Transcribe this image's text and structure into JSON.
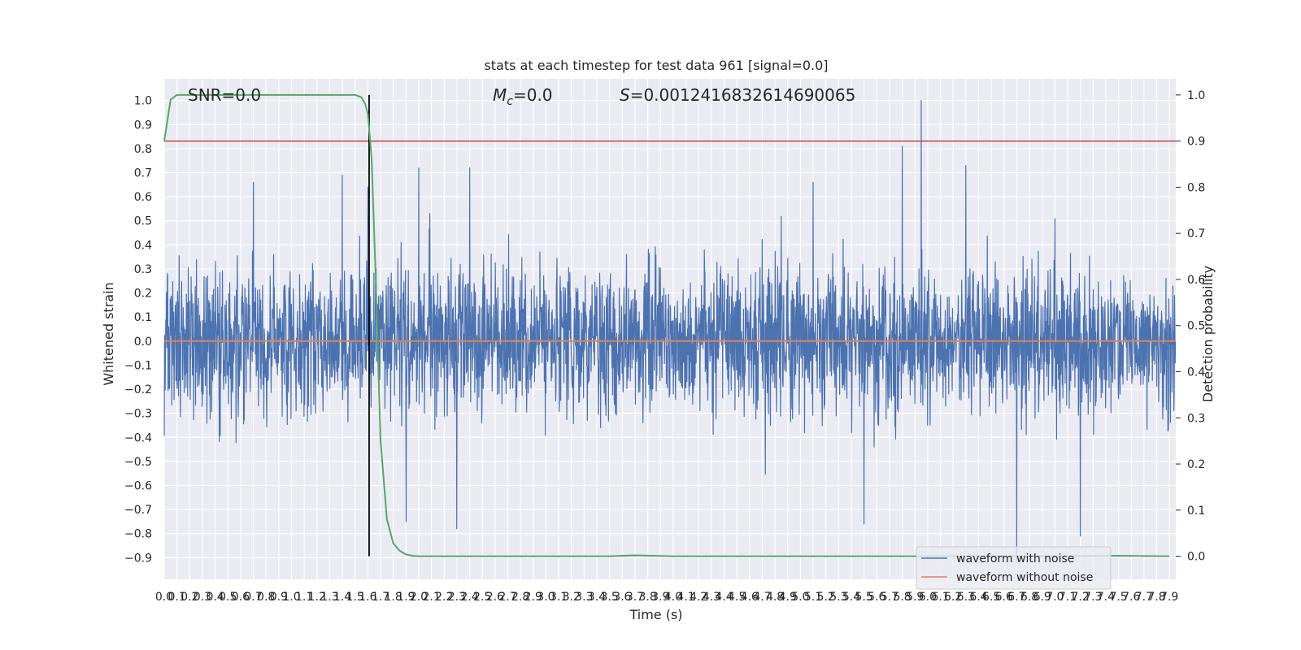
{
  "chart_data": {
    "type": "line",
    "title": "stats at each timestep for test data 961 [signal=0.0]",
    "xlabel": "Time (s)",
    "ylabel": "Whitened strain",
    "y2label": "Detection probability",
    "xlim": [
      0.0,
      7.95
    ],
    "ylim": [
      -0.99,
      1.09
    ],
    "y2lim": [
      -0.05,
      1.035
    ],
    "x_ticks": [
      0.0,
      0.1,
      0.2,
      0.3,
      0.4,
      0.5,
      0.6,
      0.7,
      0.8,
      0.9,
      1.0,
      1.1,
      1.2,
      1.3,
      1.4,
      1.5,
      1.6,
      1.7,
      1.8,
      1.9,
      2.0,
      2.1,
      2.2,
      2.3,
      2.4,
      2.5,
      2.6,
      2.7,
      2.8,
      2.9,
      3.0,
      3.1,
      3.2,
      3.3,
      3.4,
      3.5,
      3.6,
      3.7,
      3.8,
      3.9,
      4.0,
      4.1,
      4.2,
      4.3,
      4.4,
      4.5,
      4.6,
      4.7,
      4.8,
      4.9,
      5.0,
      5.1,
      5.2,
      5.3,
      5.4,
      5.5,
      5.6,
      5.7,
      5.8,
      5.9,
      6.0,
      6.1,
      6.2,
      6.3,
      6.4,
      6.5,
      6.6,
      6.7,
      6.8,
      6.9,
      7.0,
      7.1,
      7.2,
      7.3,
      7.4,
      7.5,
      7.6,
      7.7,
      7.8,
      7.9
    ],
    "x_tick_labels": [
      "0.0",
      "0.1",
      "0.2",
      "0.3",
      "0.4",
      "0.5",
      "0.6",
      "0.7",
      "0.8",
      "0.9",
      "1.0",
      "1.1",
      "1.2",
      "1.3",
      "1.4",
      "1.5",
      "1.6",
      "1.7",
      "1.8",
      "1.9",
      "2.0",
      "2.1",
      "2.2",
      "2.3",
      "2.4",
      "2.5",
      "2.6",
      "2.7",
      "2.8",
      "2.9",
      "3.0",
      "3.1",
      "3.2",
      "3.3",
      "3.4",
      "3.5",
      "3.6",
      "3.7",
      "3.8",
      "3.9",
      "4.0",
      "4.1",
      "4.2",
      "4.3",
      "4.4",
      "4.5",
      "4.6",
      "4.7",
      "4.8",
      "4.9",
      "5.0",
      "5.1",
      "5.2",
      "5.3",
      "5.4",
      "5.5",
      "5.6",
      "5.7",
      "5.8",
      "5.9",
      "6.0",
      "6.1",
      "6.2",
      "6.3",
      "6.4",
      "6.5",
      "6.6",
      "6.7",
      "6.8",
      "6.9",
      "7.0",
      "7.1",
      "7.2",
      "7.3",
      "7.4",
      "7.5",
      "7.6",
      "7.7",
      "7.8",
      "7.9"
    ],
    "y_ticks": [
      1.0,
      0.9,
      0.8,
      0.7,
      0.6,
      0.5,
      0.4,
      0.3,
      0.2,
      0.1,
      0.0,
      -0.1,
      -0.2,
      -0.3,
      -0.4,
      -0.5,
      -0.6,
      -0.7,
      -0.8,
      -0.9
    ],
    "y_tick_labels": [
      "1.0",
      "0.9",
      "0.8",
      "0.7",
      "0.6",
      "0.5",
      "0.4",
      "0.3",
      "0.2",
      "0.1",
      "0.0",
      "−0.1",
      "−0.2",
      "−0.3",
      "−0.4",
      "−0.5",
      "−0.6",
      "−0.7",
      "−0.8",
      "−0.9"
    ],
    "y2_ticks": [
      1.0,
      0.9,
      0.8,
      0.7,
      0.6,
      0.5,
      0.4,
      0.3,
      0.2,
      0.1,
      0.0
    ],
    "y2_tick_labels": [
      "1.0",
      "0.9",
      "0.8",
      "0.7",
      "0.6",
      "0.5",
      "0.4",
      "0.3",
      "0.2",
      "0.1",
      "0.0"
    ],
    "grid": true,
    "legend_position": "bottom-right",
    "series": [
      {
        "name": "waveform with noise",
        "axis": "left",
        "color": "#4c72b0",
        "description_note": "",
        "upper_envelope_typical": 0.45,
        "lower_envelope_typical": -0.45,
        "peaks": [
          [
            0.7,
            0.66
          ],
          [
            1.4,
            0.69
          ],
          [
            1.6,
            0.64
          ],
          [
            2.0,
            0.72
          ],
          [
            2.4,
            0.72
          ],
          [
            5.1,
            0.66
          ],
          [
            5.8,
            0.81
          ],
          [
            5.95,
            1.0
          ],
          [
            6.3,
            0.73
          ],
          [
            6.7,
            -0.92
          ],
          [
            7.2,
            -0.81
          ],
          [
            5.5,
            -0.76
          ],
          [
            2.3,
            -0.78
          ],
          [
            1.9,
            -0.75
          ]
        ]
      },
      {
        "name": "waveform without noise",
        "axis": "left",
        "color": "#dd8452",
        "x": [
          0.0,
          7.95
        ],
        "values": [
          0.0,
          0.0
        ]
      },
      {
        "name": "",
        "axis": "right",
        "color": "#55a868",
        "x": [
          0.0,
          0.05,
          0.1,
          0.2,
          0.5,
          1.0,
          1.5,
          1.55,
          1.58,
          1.6,
          1.63,
          1.66,
          1.7,
          1.75,
          1.8,
          1.85,
          1.9,
          1.95,
          2.0,
          2.1,
          2.5,
          3.0,
          3.5,
          3.7,
          4.0,
          5.0,
          6.0,
          7.0,
          7.5,
          7.9
        ],
        "values": [
          0.9,
          0.99,
          1.0,
          1.0,
          1.0,
          1.0,
          1.0,
          0.995,
          0.98,
          0.96,
          0.86,
          0.62,
          0.25,
          0.08,
          0.028,
          0.012,
          0.004,
          0.001,
          0.0,
          0.0,
          0.0,
          0.0,
          0.0,
          0.002,
          0.0,
          0.0,
          0.0,
          0.0,
          0.001,
          0.0
        ]
      }
    ],
    "threshold": {
      "axis": "right",
      "value": 0.9,
      "color": "#c44e52"
    },
    "vline": {
      "x": 1.61,
      "color": "#000000"
    },
    "annotations": {
      "snr_label": "SNR=0.0",
      "mc_symbol": "M",
      "mc_sub": "c",
      "mc_value": "=0.0",
      "s_symbol": "S",
      "s_value": "=0.0012416832614690065"
    }
  }
}
